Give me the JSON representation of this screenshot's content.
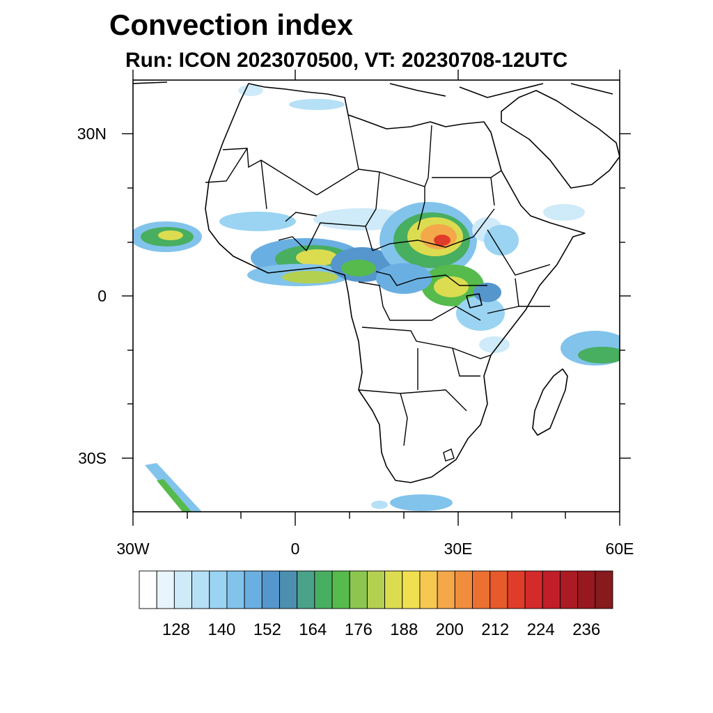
{
  "title": "Convection index",
  "subtitle": "Run: ICON 2023070500,  VT: 20230708-12UTC",
  "map": {
    "lon_range": [
      -30,
      60
    ],
    "lat_range": [
      -40,
      40
    ],
    "lat_ticks": [
      {
        "value": 30,
        "label": "30N"
      },
      {
        "value": 0,
        "label": "0"
      },
      {
        "value": -30,
        "label": "30S"
      }
    ],
    "lon_ticks": [
      {
        "value": -30,
        "label": "30W"
      },
      {
        "value": 0,
        "label": "0"
      },
      {
        "value": 30,
        "label": "30E"
      },
      {
        "value": 60,
        "label": "60E"
      }
    ]
  },
  "colorbar": {
    "labels": [
      "128",
      "140",
      "152",
      "164",
      "176",
      "188",
      "200",
      "212",
      "224",
      "236"
    ],
    "colors": [
      "#ffffff",
      "#e8f5fc",
      "#cfeaf8",
      "#b6e0f6",
      "#9ad4f2",
      "#82c3ec",
      "#6aafe2",
      "#5596cc",
      "#4d8fb0",
      "#4aa288",
      "#48ae60",
      "#56bb4c",
      "#8cc650",
      "#b4d050",
      "#dcdc50",
      "#f0e050",
      "#f6c850",
      "#f4a84a",
      "#f08e3e",
      "#ec7032",
      "#e65a2c",
      "#e03c2a",
      "#d42a2a",
      "#c01e28",
      "#ac1a24",
      "#981820",
      "#861a1c"
    ]
  }
}
